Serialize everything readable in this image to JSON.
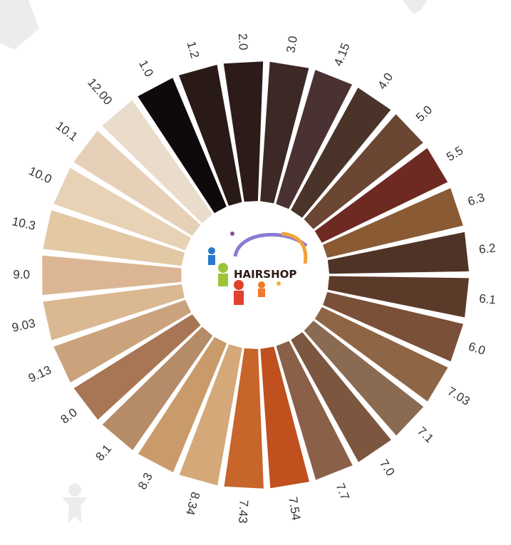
{
  "brand": {
    "name": "HAIRSHOP"
  },
  "swatches": [
    {
      "label": "1.0",
      "color": "#0e0a0b"
    },
    {
      "label": "1.2",
      "color": "#2a1a17"
    },
    {
      "label": "2.0",
      "color": "#2d1b19"
    },
    {
      "label": "3.0",
      "color": "#3c2824"
    },
    {
      "label": "4.15",
      "color": "#4b3232"
    },
    {
      "label": "4.0",
      "color": "#4a3429"
    },
    {
      "label": "5.0",
      "color": "#6b4632"
    },
    {
      "label": "5.5",
      "color": "#6e2a22"
    },
    {
      "label": "6.3",
      "color": "#8a5a35"
    },
    {
      "label": "6.2",
      "color": "#4f3326"
    },
    {
      "label": "6.1",
      "color": "#5c3a2a"
    },
    {
      "label": "6.0",
      "color": "#7a5038"
    },
    {
      "label": "7.03",
      "color": "#8e6545"
    },
    {
      "label": "7.1",
      "color": "#8b6a52"
    },
    {
      "label": "7.0",
      "color": "#7d5640"
    },
    {
      "label": "7.7",
      "color": "#8a6048"
    },
    {
      "label": "7.54",
      "color": "#c0501e"
    },
    {
      "label": "7.43",
      "color": "#c7652a"
    },
    {
      "label": "8.34",
      "color": "#d4a878"
    },
    {
      "label": "8.3",
      "color": "#c99a6a"
    },
    {
      "label": "8.1",
      "color": "#b58b68"
    },
    {
      "label": "8.0",
      "color": "#a87654"
    },
    {
      "label": "9.13",
      "color": "#caa27c"
    },
    {
      "label": "9.03",
      "color": "#d9b892"
    },
    {
      "label": "9.0",
      "color": "#dcb694"
    },
    {
      "label": "10.3",
      "color": "#e3c8a4"
    },
    {
      "label": "10.0",
      "color": "#e8d2b6"
    },
    {
      "label": "10.1",
      "color": "#e6d0b8"
    },
    {
      "label": "12.00",
      "color": "#e9dccb"
    }
  ]
}
